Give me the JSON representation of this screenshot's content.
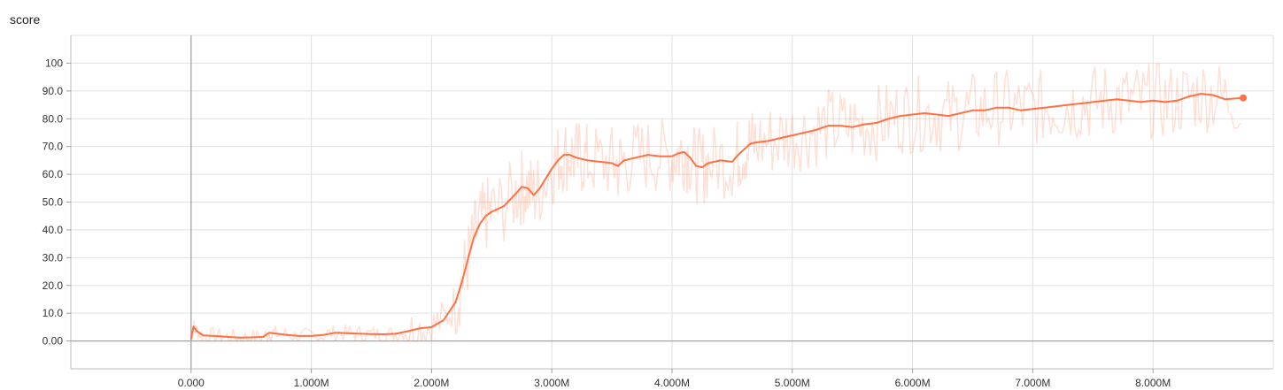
{
  "chart_data": {
    "type": "line",
    "title": "score",
    "xlabel": "",
    "ylabel": "",
    "xlim": [
      -1000000,
      9000000
    ],
    "ylim": [
      -10,
      110
    ],
    "x_ticks": [
      0,
      1000000,
      2000000,
      3000000,
      4000000,
      5000000,
      6000000,
      7000000,
      8000000
    ],
    "x_tick_labels": [
      "0.000",
      "1.000M",
      "2.000M",
      "3.000M",
      "4.000M",
      "5.000M",
      "6.000M",
      "7.000M",
      "8.000M"
    ],
    "y_ticks": [
      0,
      10,
      20,
      30,
      40,
      50,
      60,
      70,
      80,
      90,
      100
    ],
    "y_tick_labels": [
      "0.00",
      "10.0",
      "20.0",
      "30.0",
      "40.0",
      "50.0",
      "60.0",
      "70.0",
      "80.0",
      "90.0",
      "100"
    ],
    "grid": true,
    "series": [
      {
        "color": "#ff7043",
        "smoothed": true,
        "x": [
          0,
          20000,
          50000,
          100000,
          200000,
          300000,
          400000,
          500000,
          600000,
          650000,
          700000,
          800000,
          900000,
          1000000,
          1100000,
          1200000,
          1300000,
          1400000,
          1500000,
          1600000,
          1700000,
          1800000,
          1900000,
          2000000,
          2100000,
          2200000,
          2250000,
          2300000,
          2350000,
          2400000,
          2450000,
          2500000,
          2600000,
          2700000,
          2750000,
          2800000,
          2850000,
          2900000,
          3000000,
          3050000,
          3100000,
          3150000,
          3200000,
          3250000,
          3300000,
          3400000,
          3500000,
          3550000,
          3600000,
          3700000,
          3800000,
          3900000,
          4000000,
          4050000,
          4100000,
          4150000,
          4200000,
          4250000,
          4300000,
          4400000,
          4500000,
          4550000,
          4600000,
          4650000,
          4700000,
          4800000,
          4900000,
          5000000,
          5100000,
          5200000,
          5300000,
          5400000,
          5500000,
          5600000,
          5700000,
          5800000,
          5900000,
          6000000,
          6100000,
          6200000,
          6300000,
          6400000,
          6500000,
          6600000,
          6700000,
          6800000,
          6900000,
          7000000,
          7100000,
          7200000,
          7300000,
          7400000,
          7500000,
          7600000,
          7700000,
          7800000,
          7900000,
          8000000,
          8100000,
          8200000,
          8300000,
          8400000,
          8500000,
          8600000,
          8750000
        ],
        "values": [
          0.8,
          5.2,
          3.5,
          2.0,
          1.8,
          1.5,
          1.2,
          1.3,
          1.5,
          3.0,
          2.7,
          2.2,
          1.8,
          1.8,
          2.2,
          3.0,
          2.8,
          2.6,
          2.5,
          2.4,
          2.6,
          3.5,
          4.5,
          5.0,
          7.5,
          14.0,
          21.0,
          29.0,
          37.0,
          42.0,
          45.0,
          46.5,
          48.5,
          53.0,
          55.5,
          55.0,
          52.5,
          55.0,
          62.0,
          65.0,
          67.0,
          67.0,
          66.0,
          65.5,
          65.0,
          64.5,
          64.0,
          63.0,
          65.0,
          66.0,
          67.0,
          66.5,
          66.5,
          67.5,
          68.0,
          66.0,
          63.0,
          62.5,
          64.0,
          65.0,
          64.5,
          67.0,
          69.0,
          71.0,
          71.5,
          72.0,
          73.0,
          74.0,
          75.0,
          76.0,
          77.5,
          77.5,
          77.0,
          78.0,
          78.5,
          80.0,
          81.0,
          81.5,
          82.0,
          81.5,
          81.0,
          82.0,
          83.0,
          83.0,
          84.0,
          84.0,
          83.0,
          83.5,
          84.0,
          84.5,
          85.0,
          85.5,
          86.0,
          86.5,
          87.0,
          86.5,
          86.0,
          86.5,
          86.0,
          86.5,
          88.0,
          89.0,
          88.5,
          87.0,
          87.5
        ]
      }
    ]
  }
}
